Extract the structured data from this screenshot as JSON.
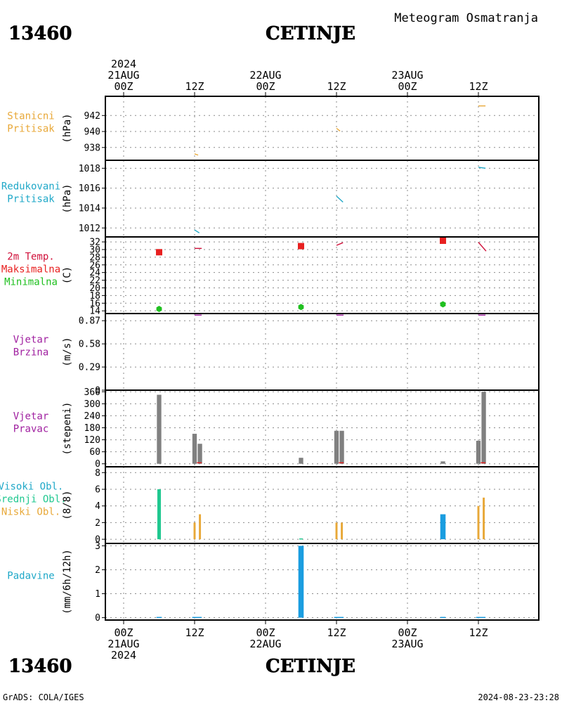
{
  "header": {
    "station_id": "13460",
    "station_name": "CETINJE",
    "product": "Meteogram Osmatranja"
  },
  "footer": {
    "station_id": "13460",
    "station_name": "CETINJE",
    "credit": "GrADS: COLA/IGES",
    "timestamp": "2024-08-23-23:28"
  },
  "time_axis": {
    "start_hour": 0,
    "end_hour": 72,
    "grid_hours": [
      0,
      12,
      24,
      36,
      48,
      60
    ],
    "top_labels": [
      {
        "hour": 0,
        "lines": [
          "2024",
          "21AUG",
          "00Z"
        ]
      },
      {
        "hour": 12,
        "lines": [
          "12Z"
        ]
      },
      {
        "hour": 24,
        "lines": [
          "22AUG",
          "00Z"
        ]
      },
      {
        "hour": 36,
        "lines": [
          "12Z"
        ]
      },
      {
        "hour": 48,
        "lines": [
          "23AUG",
          "00Z"
        ]
      },
      {
        "hour": 60,
        "lines": [
          "12Z"
        ]
      }
    ],
    "bottom_labels": [
      {
        "hour": 0,
        "lines": [
          "00Z",
          "21AUG",
          "2024"
        ]
      },
      {
        "hour": 12,
        "lines": [
          "12Z"
        ]
      },
      {
        "hour": 24,
        "lines": [
          "00Z",
          "22AUG"
        ]
      },
      {
        "hour": 36,
        "lines": [
          "12Z"
        ]
      },
      {
        "hour": 48,
        "lines": [
          "00Z",
          "23AUG"
        ]
      },
      {
        "hour": 60,
        "lines": [
          "12Z"
        ]
      }
    ]
  },
  "chart_data": [
    {
      "id": "station-pressure",
      "type": "line",
      "side_labels": [
        {
          "text": "Stanicni",
          "color": "#e8a838"
        },
        {
          "text": "Pritisak",
          "color": "#e8a838"
        }
      ],
      "ylabel": "(hPa)",
      "ylim": [
        936.4,
        944.4
      ],
      "yticks": [
        938,
        940,
        942
      ],
      "grid": true,
      "series": [
        {
          "color": "#e8a838",
          "segments": [
            [
              [
                12,
                937.2
              ],
              [
                12.6,
                937.05
              ]
            ],
            [
              [
                36,
                940.4
              ],
              [
                36.6,
                940.05
              ]
            ],
            [
              [
                60,
                943.2
              ],
              [
                61.2,
                943.2
              ]
            ]
          ]
        }
      ]
    },
    {
      "id": "reduced-pressure",
      "type": "line",
      "side_labels": [
        {
          "text": "Redukovani",
          "color": "#1fa8c8"
        },
        {
          "text": "Pritisak",
          "color": "#1fa8c8"
        }
      ],
      "ylabel": "(hPa)",
      "ylim": [
        1011.1,
        1018.8
      ],
      "yticks": [
        1012,
        1014,
        1016,
        1018
      ],
      "grid": true,
      "series": [
        {
          "color": "#1fa8c8",
          "segments": [
            [
              [
                12,
                1011.8
              ],
              [
                12.8,
                1011.5
              ]
            ],
            [
              [
                36,
                1015.2
              ],
              [
                37.1,
                1014.6
              ]
            ],
            [
              [
                60,
                1018.1
              ],
              [
                61.2,
                1018.0
              ]
            ]
          ]
        }
      ]
    },
    {
      "id": "temperature",
      "type": "line",
      "side_labels": [
        {
          "text": "2m Temp.",
          "color": "#d0103a"
        },
        {
          "text": "Maksimalna",
          "color": "#e82020"
        },
        {
          "text": "Minimalna",
          "color": "#20c020"
        }
      ],
      "ylabel": "(C)",
      "ylim": [
        13.3,
        33.3
      ],
      "yticks": [
        14,
        16,
        18,
        20,
        22,
        24,
        26,
        28,
        30,
        32
      ],
      "grid": true,
      "series": [
        {
          "color": "#d0103a",
          "segments": [
            [
              [
                12,
                30.3
              ],
              [
                13.2,
                30.3
              ]
            ],
            [
              [
                36,
                31.1
              ],
              [
                37.1,
                31.8
              ]
            ],
            [
              [
                60,
                31.9
              ],
              [
                61.3,
                29.6
              ]
            ]
          ]
        },
        {
          "color": "#e82020",
          "marker": "square",
          "points": [
            [
              6,
              29.3
            ],
            [
              30,
              30.9
            ],
            [
              54,
              32.3
            ]
          ]
        },
        {
          "color": "#20c020",
          "marker": "hexagon",
          "points": [
            [
              6,
              14.5
            ],
            [
              30,
              15.0
            ],
            [
              54,
              15.7
            ]
          ]
        }
      ]
    },
    {
      "id": "wind-speed",
      "type": "line",
      "side_labels": [
        {
          "text": "Vjetar",
          "color": "#a020a0"
        },
        {
          "text": "Brzina",
          "color": "#a020a0"
        }
      ],
      "ylabel": "(m/s)",
      "ylim": [
        0,
        0.96
      ],
      "yticks": [
        0,
        0.29,
        0.58,
        0.87
      ],
      "ytick_labels": [
        "0",
        "0.29",
        "0.58",
        "0.87"
      ],
      "grid": true,
      "series": [
        {
          "color": "#a020a0",
          "segments": [
            [
              [
                12,
                0.94
              ],
              [
                13.2,
                0.94
              ]
            ],
            [
              [
                36,
                0.94
              ],
              [
                37.2,
                0.94
              ]
            ],
            [
              [
                60,
                0.94
              ],
              [
                61.2,
                0.94
              ]
            ]
          ]
        }
      ]
    },
    {
      "id": "wind-direction",
      "type": "bar",
      "side_labels": [
        {
          "text": "Vjetar",
          "color": "#a020a0"
        },
        {
          "text": "Pravac",
          "color": "#a020a0"
        }
      ],
      "ylabel": "(stepeni)",
      "ylim": [
        -15,
        368
      ],
      "yticks": [
        0,
        60,
        120,
        180,
        240,
        300,
        360
      ],
      "grid": true,
      "bars": [
        {
          "x": 6,
          "value": 345,
          "color": "#808080",
          "width": 0.75
        },
        {
          "x": 12,
          "value": 150,
          "color": "#808080",
          "width": 0.75
        },
        {
          "x": 12.9,
          "value": 100,
          "color": "#808080",
          "width": 0.75
        },
        {
          "x": 30,
          "value": 30,
          "color": "#808080",
          "width": 0.75
        },
        {
          "x": 36,
          "value": 165,
          "color": "#808080",
          "width": 0.75
        },
        {
          "x": 36.9,
          "value": 165,
          "color": "#808080",
          "width": 0.75
        },
        {
          "x": 54,
          "value": 12,
          "color": "#808080",
          "width": 0.75
        },
        {
          "x": 60,
          "value": 115,
          "color": "#808080",
          "width": 0.75
        },
        {
          "x": 60.9,
          "value": 360,
          "color": "#808080",
          "width": 0.75
        }
      ],
      "series": [
        {
          "color": "#e82020",
          "segments": [
            [
              [
                12.4,
                5
              ],
              [
                13.2,
                5
              ]
            ],
            [
              [
                36.4,
                5
              ],
              [
                37.2,
                5
              ]
            ],
            [
              [
                60.4,
                5
              ],
              [
                61.2,
                5
              ]
            ]
          ]
        }
      ]
    },
    {
      "id": "clouds",
      "type": "bar",
      "side_labels": [
        {
          "text": "Visoki Obl.",
          "color": "#1fa8c8"
        },
        {
          "text": "Srednji Obl.",
          "color": "#20c890"
        },
        {
          "text": "Niski Obl.",
          "color": "#e8a838"
        }
      ],
      "ylabel": "(8/8)",
      "ylim": [
        -0.5,
        8.7
      ],
      "yticks": [
        0,
        2,
        4,
        6,
        8
      ],
      "grid": true,
      "bars": [
        {
          "x": 6,
          "value": 6,
          "color": "#20c890",
          "width": 0.6
        },
        {
          "x": 12,
          "value": 2,
          "color": "#e8a838",
          "width": 0.35
        },
        {
          "x": 12.9,
          "value": 3,
          "color": "#e8a838",
          "width": 0.35
        },
        {
          "x": 30,
          "value": 0.1,
          "color": "#20c890",
          "width": 0.6
        },
        {
          "x": 36,
          "value": 2,
          "color": "#e8a838",
          "width": 0.35
        },
        {
          "x": 36.9,
          "value": 2,
          "color": "#e8a838",
          "width": 0.35
        },
        {
          "x": 54,
          "value": 3,
          "color": "#1a9de0",
          "width": 0.9
        },
        {
          "x": 60,
          "value": 4,
          "color": "#e8a838",
          "width": 0.35
        },
        {
          "x": 60.9,
          "value": 5,
          "color": "#e8a838",
          "width": 0.35
        }
      ]
    },
    {
      "id": "precipitation",
      "type": "bar",
      "side_labels": [
        {
          "text": "Padavine",
          "color": "#1fa8c8"
        }
      ],
      "ylabel": "(mm/6h/12h)",
      "ylim": [
        -0.1,
        3.1
      ],
      "yticks": [
        0,
        1,
        2,
        3
      ],
      "grid": true,
      "bars": [
        {
          "x": 6,
          "value": 0.03,
          "color": "#1a9de0",
          "width": 0.9
        },
        {
          "x": 12.4,
          "value": 0.03,
          "color": "#1a9de0",
          "width": 1.6
        },
        {
          "x": 30,
          "value": 3,
          "color": "#1a9de0",
          "width": 0.9
        },
        {
          "x": 36.4,
          "value": 0.03,
          "color": "#1a9de0",
          "width": 1.6
        },
        {
          "x": 54,
          "value": 0.03,
          "color": "#1a9de0",
          "width": 0.9
        },
        {
          "x": 60.4,
          "value": 0.03,
          "color": "#1a9de0",
          "width": 1.6
        }
      ]
    }
  ]
}
